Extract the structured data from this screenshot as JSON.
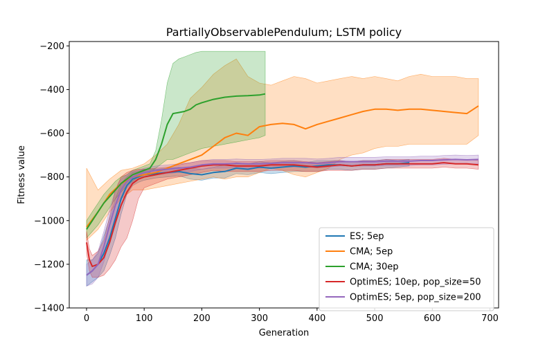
{
  "chart_data": {
    "type": "line",
    "title": "PartiallyObservablePendulum; LSTM policy",
    "xlabel": "Generation",
    "ylabel": "Fitness value",
    "xlim": [
      -30,
      715
    ],
    "ylim": [
      -1400,
      -180
    ],
    "xticks": [
      0,
      100,
      200,
      300,
      400,
      500,
      600,
      700
    ],
    "yticks": [
      -1400,
      -1200,
      -1000,
      -800,
      -600,
      -400,
      -200
    ],
    "xtick_labels": [
      "0",
      "100",
      "200",
      "300",
      "400",
      "500",
      "600",
      "700"
    ],
    "ytick_labels": [
      "−1400",
      "−1200",
      "−1000",
      "−800",
      "−600",
      "−400",
      "−200"
    ],
    "legend_position": "lower-right",
    "series": [
      {
        "name": "ES; 5ep",
        "color": "#1f77b4",
        "x": [
          0,
          10,
          20,
          30,
          40,
          50,
          60,
          70,
          80,
          90,
          100,
          120,
          140,
          160,
          180,
          200,
          220,
          240,
          260,
          280,
          300,
          320,
          340,
          360,
          380,
          400,
          420,
          440,
          460,
          480,
          500,
          520,
          540,
          560
        ],
        "y": [
          -1250,
          -1230,
          -1200,
          -1150,
          -1080,
          -990,
          -900,
          -840,
          -810,
          -800,
          -790,
          -785,
          -780,
          -775,
          -785,
          -790,
          -780,
          -775,
          -760,
          -765,
          -755,
          -760,
          -755,
          -750,
          -755,
          -750,
          -745,
          -745,
          -750,
          -745,
          -745,
          -740,
          -740,
          -735
        ],
        "lower": [
          -1300,
          -1280,
          -1260,
          -1230,
          -1160,
          -1080,
          -970,
          -880,
          -840,
          -825,
          -815,
          -805,
          -800,
          -795,
          -810,
          -815,
          -805,
          -805,
          -785,
          -790,
          -780,
          -785,
          -780,
          -775,
          -775,
          -775,
          -765,
          -765,
          -770,
          -765,
          -765,
          -760,
          -755,
          -750
        ],
        "upper": [
          -1180,
          -1180,
          -1150,
          -1070,
          -990,
          -900,
          -830,
          -800,
          -780,
          -775,
          -765,
          -765,
          -760,
          -755,
          -760,
          -765,
          -755,
          -745,
          -735,
          -740,
          -730,
          -735,
          -730,
          -725,
          -735,
          -725,
          -725,
          -725,
          -730,
          -725,
          -725,
          -720,
          -725,
          -720
        ]
      },
      {
        "name": "CMA; 5ep",
        "color": "#ff7f0e",
        "x": [
          0,
          20,
          40,
          60,
          80,
          100,
          120,
          140,
          160,
          180,
          200,
          220,
          240,
          260,
          280,
          300,
          320,
          340,
          360,
          380,
          400,
          420,
          440,
          460,
          480,
          500,
          520,
          540,
          560,
          580,
          600,
          620,
          640,
          660,
          680
        ],
        "y": [
          -1030,
          -960,
          -880,
          -830,
          -800,
          -790,
          -780,
          -760,
          -740,
          -720,
          -700,
          -660,
          -620,
          -600,
          -610,
          -570,
          -560,
          -555,
          -560,
          -580,
          -560,
          -545,
          -530,
          -515,
          -500,
          -490,
          -490,
          -495,
          -490,
          -490,
          -495,
          -500,
          -505,
          -510,
          -475
        ],
        "lower": [
          -1090,
          -1040,
          -960,
          -900,
          -860,
          -860,
          -850,
          -840,
          -830,
          -820,
          -810,
          -800,
          -810,
          -800,
          -800,
          -780,
          -760,
          -770,
          -790,
          -800,
          -780,
          -760,
          -720,
          -700,
          -690,
          -670,
          -660,
          -660,
          -650,
          -650,
          -650,
          -650,
          -650,
          -650,
          -610
        ],
        "upper": [
          -760,
          -860,
          -810,
          -770,
          -760,
          -740,
          -700,
          -650,
          -560,
          -440,
          -390,
          -330,
          -290,
          -260,
          -340,
          -370,
          -380,
          -360,
          -340,
          -350,
          -370,
          -360,
          -350,
          -340,
          -350,
          -340,
          -350,
          -360,
          -340,
          -330,
          -340,
          -340,
          -340,
          -350,
          -350
        ]
      },
      {
        "name": "CMA; 30ep",
        "color": "#2ca02c",
        "x": [
          0,
          10,
          20,
          30,
          40,
          50,
          60,
          70,
          80,
          90,
          100,
          110,
          120,
          130,
          140,
          150,
          160,
          170,
          180,
          190,
          200,
          220,
          240,
          260,
          280,
          300,
          310
        ],
        "y": [
          -1040,
          -1000,
          -960,
          -920,
          -890,
          -860,
          -830,
          -810,
          -790,
          -780,
          -770,
          -760,
          -720,
          -650,
          -560,
          -510,
          -505,
          -500,
          -490,
          -470,
          -460,
          -445,
          -435,
          -430,
          -428,
          -425,
          -420
        ],
        "lower": [
          -1080,
          -1050,
          -1020,
          -980,
          -940,
          -900,
          -870,
          -840,
          -820,
          -800,
          -790,
          -780,
          -760,
          -740,
          -720,
          -720,
          -710,
          -700,
          -690,
          -680,
          -670,
          -660,
          -650,
          -640,
          -630,
          -620,
          -610
        ],
        "upper": [
          -1000,
          -960,
          -920,
          -880,
          -850,
          -820,
          -800,
          -790,
          -770,
          -760,
          -750,
          -740,
          -680,
          -540,
          -370,
          -280,
          -260,
          -250,
          -240,
          -230,
          -225,
          -225,
          -225,
          -225,
          -225,
          -225,
          -225
        ]
      },
      {
        "name": "OptimES; 10ep, pop_size=50",
        "color": "#d62728",
        "x": [
          0,
          5,
          10,
          20,
          30,
          40,
          50,
          60,
          70,
          80,
          90,
          100,
          120,
          140,
          160,
          180,
          200,
          220,
          240,
          260,
          280,
          300,
          320,
          340,
          360,
          380,
          400,
          420,
          440,
          460,
          480,
          500,
          520,
          540,
          560,
          580,
          600,
          620,
          640,
          660,
          680
        ],
        "y": [
          -1100,
          -1180,
          -1210,
          -1200,
          -1170,
          -1100,
          -1010,
          -930,
          -870,
          -830,
          -810,
          -800,
          -790,
          -780,
          -770,
          -760,
          -750,
          -745,
          -745,
          -750,
          -750,
          -750,
          -745,
          -745,
          -745,
          -750,
          -755,
          -750,
          -745,
          -750,
          -745,
          -745,
          -740,
          -740,
          -740,
          -740,
          -740,
          -735,
          -740,
          -740,
          -745
        ],
        "lower": [
          -1150,
          -1230,
          -1260,
          -1260,
          -1250,
          -1220,
          -1180,
          -1120,
          -1080,
          -1000,
          -900,
          -850,
          -830,
          -810,
          -800,
          -790,
          -780,
          -770,
          -775,
          -775,
          -775,
          -775,
          -770,
          -770,
          -770,
          -775,
          -775,
          -770,
          -770,
          -770,
          -765,
          -765,
          -760,
          -760,
          -760,
          -760,
          -760,
          -755,
          -760,
          -760,
          -765
        ],
        "upper": [
          -1050,
          -1130,
          -1160,
          -1140,
          -1090,
          -980,
          -860,
          -800,
          -780,
          -770,
          -765,
          -765,
          -760,
          -755,
          -745,
          -735,
          -725,
          -725,
          -725,
          -730,
          -730,
          -730,
          -725,
          -725,
          -725,
          -730,
          -735,
          -730,
          -725,
          -730,
          -725,
          -725,
          -720,
          -720,
          -720,
          -720,
          -720,
          -715,
          -720,
          -720,
          -725
        ]
      },
      {
        "name": "OptimES; 5ep, pop_size=200",
        "color": "#9467bd",
        "x": [
          0,
          10,
          20,
          30,
          40,
          50,
          60,
          70,
          80,
          90,
          100,
          120,
          140,
          160,
          180,
          200,
          220,
          240,
          260,
          280,
          300,
          320,
          340,
          360,
          380,
          400,
          420,
          440,
          460,
          480,
          500,
          520,
          540,
          560,
          580,
          600,
          620,
          640,
          660,
          680
        ],
        "y": [
          -1250,
          -1230,
          -1200,
          -1120,
          -1020,
          -930,
          -860,
          -820,
          -800,
          -790,
          -780,
          -770,
          -765,
          -760,
          -755,
          -745,
          -740,
          -740,
          -738,
          -740,
          -740,
          -738,
          -735,
          -735,
          -735,
          -738,
          -735,
          -730,
          -730,
          -730,
          -730,
          -728,
          -728,
          -728,
          -725,
          -725,
          -722,
          -720,
          -722,
          -720
        ],
        "lower": [
          -1300,
          -1290,
          -1260,
          -1190,
          -1090,
          -1000,
          -910,
          -850,
          -825,
          -810,
          -800,
          -790,
          -785,
          -780,
          -775,
          -765,
          -760,
          -760,
          -758,
          -760,
          -760,
          -758,
          -755,
          -755,
          -755,
          -758,
          -755,
          -750,
          -750,
          -750,
          -750,
          -748,
          -748,
          -748,
          -745,
          -745,
          -742,
          -740,
          -742,
          -740
        ],
        "upper": [
          -1200,
          -1180,
          -1140,
          -1050,
          -950,
          -860,
          -810,
          -790,
          -775,
          -770,
          -760,
          -750,
          -745,
          -740,
          -735,
          -725,
          -720,
          -720,
          -718,
          -720,
          -720,
          -718,
          -715,
          -715,
          -715,
          -718,
          -715,
          -710,
          -710,
          -710,
          -710,
          -708,
          -708,
          -708,
          -705,
          -705,
          -702,
          -700,
          -702,
          -700
        ]
      }
    ]
  }
}
